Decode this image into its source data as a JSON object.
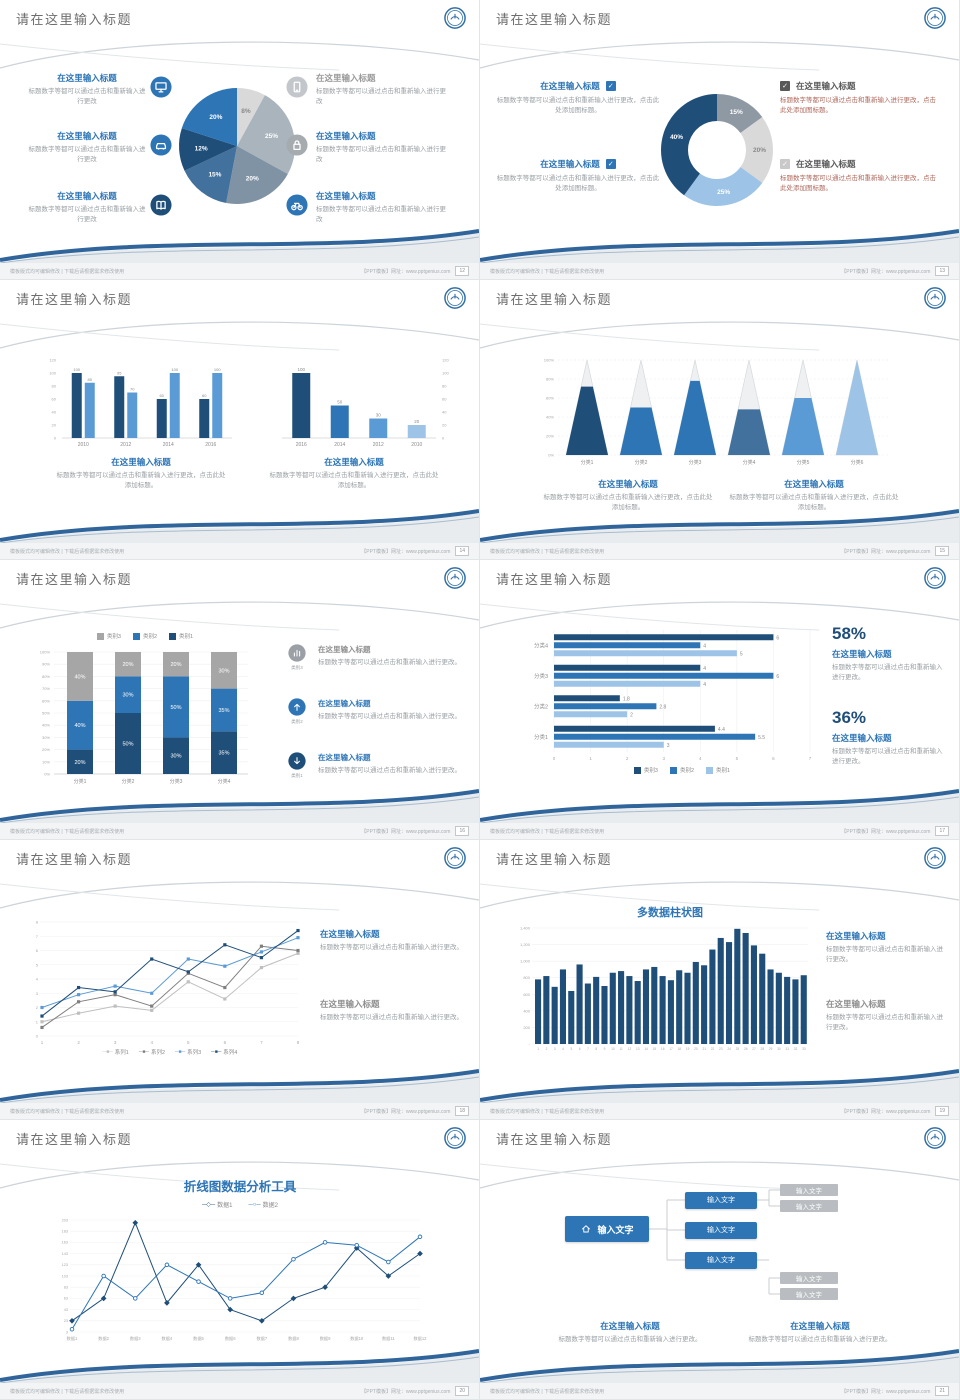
{
  "common": {
    "slide_title": "请在这里输入标题",
    "footer_left": "模板版式均可编辑修改 | 下载后请根据需求修改使用",
    "footer_right": "【PPT模板】网址：www.pptgenius.com",
    "colors": {
      "dark_blue": "#1f4e79",
      "blue": "#2e75b6",
      "mid_blue": "#5b9bd5",
      "light_blue": "#9dc3e6",
      "gray": "#a6a6a6",
      "light_gray": "#d9d9d9"
    }
  },
  "slides": [
    {
      "page_no": "12",
      "type": "pie-callouts",
      "left_items": [
        {
          "title": "在这里输入标题",
          "text": "标题数字等都可以通过点击和重新输入进行更改",
          "icon": "monitor",
          "icon_color": "#2e75b6"
        },
        {
          "title": "在这里输入标题",
          "text": "标题数字等都可以通过点击和重新输入进行更改",
          "icon": "car",
          "icon_color": "#2e75b6"
        },
        {
          "title": "在这里输入标题",
          "text": "标题数字等都可以通过点击和重新输入进行更改",
          "icon": "book",
          "icon_color": "#1f4e79"
        }
      ],
      "right_items": [
        {
          "title": "在这里输入标题",
          "text": "标题数字等都可以通过点击和重新输入进行更改",
          "icon": "phone",
          "icon_color": "#c3c7cb",
          "muted": true
        },
        {
          "title": "在这里输入标题",
          "text": "标题数字等都可以通过点击和重新输入进行更改",
          "icon": "lock",
          "icon_color": "#a6abb0"
        },
        {
          "title": "在这里输入标题",
          "text": "标题数字等都可以通过点击和重新输入进行更改",
          "icon": "bike",
          "icon_color": "#2e75b6"
        }
      ],
      "chart_data": {
        "type": "pie",
        "labels": [
          "8%",
          "25%",
          "20%",
          "15%",
          "12%",
          "20%"
        ],
        "values": [
          8,
          25,
          20,
          15,
          12,
          20
        ],
        "colors": [
          "#d9d9d9",
          "#aab4bd",
          "#7f93a4",
          "#41719c",
          "#1f4e79",
          "#2e75b6"
        ],
        "label_colors": [
          "#8a8a8a",
          "#ffffff",
          "#ffffff",
          "#ffffff",
          "#ffffff",
          "#ffffff"
        ]
      }
    },
    {
      "page_no": "13",
      "type": "donut-checklist",
      "left_items": [
        {
          "title": "在这里输入标题",
          "text": "标题数字等都可以通过点击和重新输入进行更改，点击此处添加图标题。",
          "check_color": "#2e75b6"
        },
        {
          "title": "在这里输入标题",
          "text": "标题数字等都可以通过点击和重新输入进行更改，点击此处添加图标题。",
          "check_color": "#2e75b6"
        }
      ],
      "right_items": [
        {
          "title": "在这里输入标题",
          "text": "标题数字等都可以通过点击和重新输入进行更改，点击此处添加图标题。",
          "check_color": "#595959",
          "text_color": "#b0685c"
        },
        {
          "title": "在这里输入标题",
          "text": "标题数字等都可以通过点击和重新输入进行更改，点击此处添加图标题。",
          "check_color": "#c9c9c9",
          "text_color": "#b0685c"
        }
      ],
      "chart_data": {
        "type": "donut",
        "labels": [
          "15%",
          "20%",
          "25%",
          "40%"
        ],
        "values": [
          15,
          20,
          25,
          40
        ],
        "colors": [
          "#8e99a3",
          "#d9d9d9",
          "#9dc3e6",
          "#1f4e79"
        ],
        "label_colors": [
          "#ffffff",
          "#8a8a8a",
          "#ffffff",
          "#ffffff"
        ]
      }
    },
    {
      "page_no": "14",
      "type": "dual-bars",
      "blocks": [
        {
          "title": "在这里输入标题",
          "text": "标题数字等都可以通过点击和重新输入进行更改，点击此处添加标题。"
        },
        {
          "title": "在这里输入标题",
          "text": "标题数字等都可以通过点击和重新输入进行更改，点击此处添加标题。"
        }
      ],
      "chart_data": [
        {
          "type": "bar",
          "categories": [
            "2010",
            "2012",
            "2014",
            "2016"
          ],
          "ylim": [
            0,
            120
          ],
          "ytick_step": 20,
          "series": [
            {
              "name": "系列1",
              "color": "#1f4e79",
              "values": [
                100,
                95,
                60,
                60
              ]
            },
            {
              "name": "系列2",
              "color": "#5b9bd5",
              "values": [
                85,
                70,
                100,
                100
              ]
            }
          ]
        },
        {
          "type": "bar",
          "categories": [
            "2016",
            "2014",
            "2012",
            "2010"
          ],
          "ylim": [
            0,
            120
          ],
          "ytick_step": 20,
          "values": [
            100,
            50,
            30,
            20
          ],
          "colors": [
            "#1f4e79",
            "#2e75b6",
            "#5b9bd5",
            "#9dc3e6"
          ]
        }
      ]
    },
    {
      "page_no": "15",
      "type": "pyramid",
      "blocks": [
        {
          "title": "在这里输入标题",
          "text": "标题数字等都可以通过点击和重新输入进行更改，点击此处添加标题。"
        },
        {
          "title": "在这里输入标题",
          "text": "标题数字等都可以通过点击和重新输入进行更改，点击此处添加标题。"
        }
      ],
      "chart_data": {
        "type": "pyramid",
        "categories": [
          "分类1",
          "分类2",
          "分类3",
          "分类4",
          "分类5",
          "分类6"
        ],
        "fill_percent": [
          72,
          50,
          78,
          48,
          60,
          100
        ],
        "fill_colors": [
          "#1f4e79",
          "#2e75b6",
          "#2e75b6",
          "#41719c",
          "#5b9bd5",
          "#9dc3e6"
        ],
        "ylabels": [
          "0%",
          "20%",
          "40%",
          "60%",
          "80%",
          "100%"
        ]
      }
    },
    {
      "page_no": "16",
      "type": "stacked-bar",
      "legend": [
        {
          "label": "类别3",
          "color": "#a6a6a6"
        },
        {
          "label": "类别2",
          "color": "#2e75b6"
        },
        {
          "label": "类别1",
          "color": "#1f4e79"
        }
      ],
      "side_items": [
        {
          "icon": "chart",
          "icon_color": "#9aa0a6",
          "icon_label": "类别3",
          "title": "在这里输入标题",
          "title_color": "#8f8f8f",
          "text": "标题数字等都可以通过点击和重新输入进行更改。"
        },
        {
          "icon": "arrow-up",
          "icon_color": "#2e75b6",
          "icon_label": "类别2",
          "title": "在这里输入标题",
          "text": "标题数字等都可以通过点击和重新输入进行更改。"
        },
        {
          "icon": "arrow-down",
          "icon_color": "#1f4e79",
          "icon_label": "类别1",
          "title": "在这里输入标题",
          "text": "标题数字等都可以通过点击和重新输入进行更改。"
        }
      ],
      "chart_data": {
        "type": "stacked-bar",
        "categories": [
          "分类1",
          "分类2",
          "分类3",
          "分类4"
        ],
        "ylim": [
          0,
          100
        ],
        "series": [
          {
            "name": "类别1",
            "color": "#1f4e79",
            "values": [
              20,
              50,
              30,
              35
            ]
          },
          {
            "name": "类别2",
            "color": "#2e75b6",
            "values": [
              40,
              30,
              50,
              35
            ]
          },
          {
            "name": "类别3",
            "color": "#a6a6a6",
            "values": [
              40,
              20,
              20,
              30
            ]
          }
        ]
      }
    },
    {
      "page_no": "17",
      "type": "hbar-stats",
      "stats": [
        {
          "value": "58%",
          "title": "在这里输入标题",
          "text": "标题数字等都可以通过点击和重新输入进行更改。"
        },
        {
          "value": "36%",
          "title": "在这里输入标题",
          "text": "标题数字等都可以通过点击和重新输入进行更改。"
        }
      ],
      "legend": [
        {
          "label": "类别3",
          "color": "#1f4e79"
        },
        {
          "label": "类别2",
          "color": "#2e75b6"
        },
        {
          "label": "类别1",
          "color": "#9dc3e6"
        }
      ],
      "chart_data": {
        "type": "bar-horizontal",
        "xlim": [
          0,
          7
        ],
        "categories": [
          "分类4",
          "分类3",
          "分类2",
          "分类1"
        ],
        "series": [
          {
            "name": "类别3",
            "color": "#1f4e79",
            "values": [
              6,
              4,
              1.8,
              4.4
            ]
          },
          {
            "name": "类别2",
            "color": "#2e75b6",
            "values": [
              4,
              6,
              2.8,
              5.5
            ]
          },
          {
            "name": "类别1",
            "color": "#9dc3e6",
            "values": [
              5,
              4,
              2,
              3
            ]
          }
        ]
      }
    },
    {
      "page_no": "18",
      "type": "line-blocks",
      "blocks": [
        {
          "title": "在这里输入标题",
          "text": "标题数字等都可以通过点击和重新输入进行更改。"
        },
        {
          "title": "在这里输入标题",
          "title_color": "#8f8f8f",
          "text": "标题数字等都可以通过点击和重新输入进行更改。"
        }
      ],
      "chart_data": {
        "type": "line",
        "x": [
          "1",
          "2",
          "3",
          "4",
          "5",
          "6",
          "7",
          "8"
        ],
        "ylim": [
          0,
          8
        ],
        "series": [
          {
            "name": "系列1",
            "color": "#bfbfbf",
            "values": [
              1,
              1.6,
              2.1,
              1.8,
              3.8,
              2.6,
              4.8,
              5.8
            ]
          },
          {
            "name": "系列2",
            "color": "#7f7f7f",
            "values": [
              0.6,
              2.4,
              2.9,
              2.1,
              4.4,
              3.4,
              6.3,
              6
            ]
          },
          {
            "name": "系列3",
            "color": "#5b9bd5",
            "values": [
              2,
              2.9,
              3.5,
              3,
              5.4,
              4.9,
              5.9,
              6.9
            ]
          },
          {
            "name": "系列4",
            "color": "#1f4e79",
            "values": [
              1.4,
              3.4,
              3.1,
              5.4,
              4.5,
              6.4,
              5.5,
              7.4
            ]
          }
        ]
      }
    },
    {
      "page_no": "19",
      "type": "column-blocks",
      "chart_title": "多数据柱状图",
      "blocks": [
        {
          "title": "在这里输入标题",
          "text": "标题数字等都可以通过点击和重新输入进行更改。"
        },
        {
          "title": "在这里输入标题",
          "title_color": "#8f8f8f",
          "text": "标题数字等都可以通过点击和重新输入进行更改。"
        }
      ],
      "chart_data": {
        "type": "bar",
        "color": "#1f4e79",
        "ylim": [
          0,
          1400
        ],
        "ytick_labels": [
          "-",
          "200",
          "400",
          "600",
          "800",
          "1,000",
          "1,200",
          "1,400"
        ],
        "categories": [
          "1",
          "2",
          "3",
          "4",
          "5",
          "6",
          "7",
          "8",
          "9",
          "10",
          "11",
          "12",
          "13",
          "14",
          "15",
          "16",
          "17",
          "18",
          "19",
          "20",
          "21",
          "22",
          "23",
          "24",
          "25",
          "26",
          "27",
          "28",
          "29",
          "30",
          "31",
          "32",
          "33"
        ],
        "values": [
          780,
          820,
          690,
          900,
          640,
          960,
          730,
          810,
          700,
          860,
          880,
          820,
          760,
          900,
          930,
          820,
          770,
          890,
          860,
          990,
          950,
          1140,
          1280,
          1230,
          1390,
          1340,
          1190,
          1090,
          900,
          860,
          810,
          780,
          830
        ]
      }
    },
    {
      "page_no": "20",
      "type": "line-title",
      "chart_title": "折线图数据分析工具",
      "chart_data": {
        "type": "line",
        "ylim": [
          3,
          203
        ],
        "yticks": [
          3,
          23,
          43,
          63,
          83,
          103,
          123,
          143,
          163,
          183,
          203
        ],
        "categories": [
          "数据1",
          "数据2",
          "数据3",
          "数据4",
          "数据5",
          "数据6",
          "数据7",
          "数据8",
          "数据9",
          "数据10",
          "数据11",
          "数据12"
        ],
        "series": [
          {
            "name": "数据1",
            "color": "#1f4e79",
            "marker": "diamond",
            "values": [
              23,
              63,
              198,
              55,
              123,
              43,
              23,
              63,
              83,
              153,
              103,
              143
            ]
          },
          {
            "name": "数据2",
            "color": "#2e75b6",
            "marker": "circle",
            "values": [
              8,
              103,
              63,
              123,
              93,
              63,
              73,
              133,
              163,
              158,
              128,
              173
            ]
          }
        ]
      }
    },
    {
      "page_no": "21",
      "type": "flow",
      "root_label": "输入文字",
      "mid_labels": [
        "输入文字",
        "输入文字",
        "输入文字"
      ],
      "leaf_top_labels": [
        "输入文字",
        "输入文字"
      ],
      "leaf_bottom_labels": [
        "输入文字",
        "输入文字"
      ],
      "blocks": [
        {
          "title": "在这里输入标题",
          "text": "标题数字等都可以通过点击和重新输入进行更改。"
        },
        {
          "title": "在这里输入标题",
          "text": "标题数字等都可以通过点击和重新输入进行更改。"
        }
      ]
    }
  ]
}
